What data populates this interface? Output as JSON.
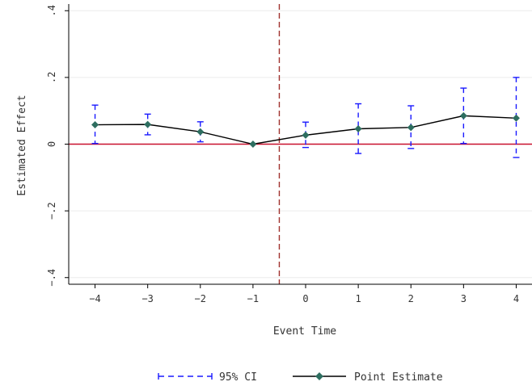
{
  "chart_data": {
    "type": "line",
    "xlabel": "Event Time",
    "ylabel": "Estimated Effect",
    "x": [
      -4,
      -3,
      -2,
      -1,
      0,
      1,
      2,
      3,
      4
    ],
    "xlim": [
      -4.5,
      4.3
    ],
    "ylim": [
      -0.42,
      0.42
    ],
    "x_ticks": [
      -4,
      -3,
      -2,
      -1,
      0,
      1,
      2,
      3,
      4
    ],
    "x_tick_labels": [
      "−4",
      "−3",
      "−2",
      "−1",
      "0",
      "1",
      "2",
      "3",
      "4"
    ],
    "y_ticks": [
      -0.4,
      -0.2,
      0,
      0.2,
      0.4
    ],
    "y_tick_labels": [
      "−.4",
      "−.2",
      "0",
      ".2",
      ".4"
    ],
    "grid": "horizontal",
    "series": [
      {
        "name": "Point Estimate",
        "values": [
          0.058,
          0.059,
          0.037,
          0.0,
          0.027,
          0.046,
          0.05,
          0.085,
          0.078
        ],
        "color": "#2e6e60",
        "line_color": "#000000"
      },
      {
        "name": "95% CI",
        "lower": [
          0.002,
          0.028,
          0.007,
          0.0,
          -0.01,
          -0.028,
          -0.013,
          0.002,
          -0.04
        ],
        "upper": [
          0.117,
          0.09,
          0.067,
          0.0,
          0.066,
          0.121,
          0.115,
          0.168,
          0.2
        ],
        "color": "#1a1aff"
      }
    ],
    "reference_lines": [
      {
        "axis": "y",
        "value": 0,
        "color": "#c8102e",
        "style": "solid"
      },
      {
        "axis": "x",
        "value": -0.5,
        "color": "#a0322e",
        "style": "dashed"
      }
    ],
    "legend": {
      "placement": "bottom",
      "entries": [
        "95% CI",
        "Point Estimate"
      ]
    }
  }
}
